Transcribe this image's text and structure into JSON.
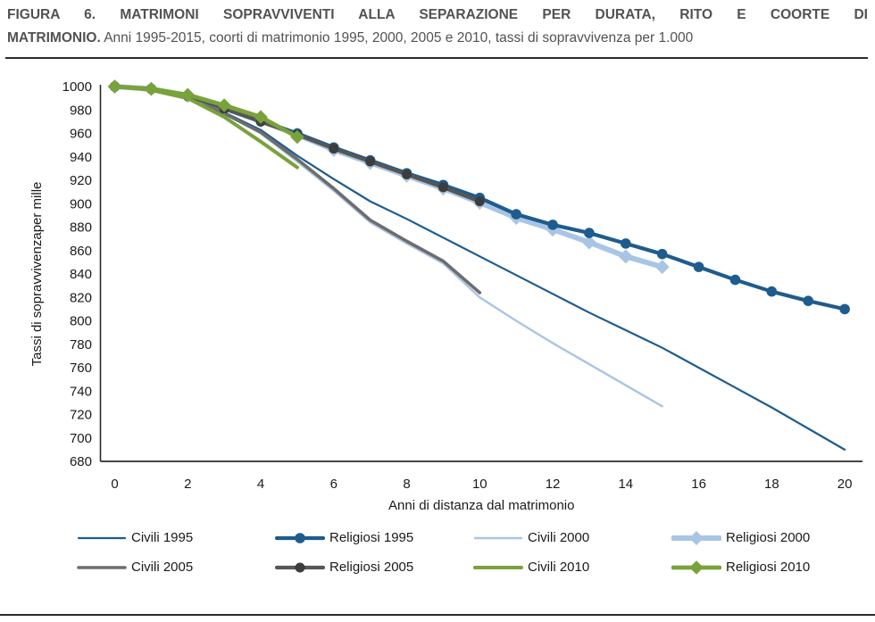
{
  "figure": {
    "title_line1_bold": "FIGURA 6. MATRIMONI SOPRAVVIVENTI ALLA SEPARAZIONE PER DURATA, RITO E COORTE DI",
    "title_line2_bold": "MATRIMONIO.",
    "title_line2_rest": "Anni 1995-2015, coorti di matrimonio 1995, 2000, 2005 e 2010, tassi di sopravvivenza per 1.000"
  },
  "chart_data": {
    "type": "line",
    "title": "Matrimoni sopravviventi alla separazione per durata, rito e coorte di matrimonio",
    "xlabel": "Anni di distanza dal matrimonio",
    "ylabel": "Tassi di sopravvivenzaper mille",
    "x_axis": {
      "min": 0,
      "max": 20,
      "tick_step": 2
    },
    "y_axis": {
      "min": 680,
      "max": 1000,
      "tick_step": 20
    },
    "grid": false,
    "legend_position": "bottom",
    "x_unit_years": [
      0,
      1,
      2,
      3,
      4,
      5,
      6,
      7,
      8,
      9,
      10,
      11,
      12,
      13,
      14,
      15,
      16,
      17,
      18,
      19,
      20
    ],
    "series": [
      {
        "id": "civili-1995",
        "name": "Civili 1995",
        "color": "#1E5C8E",
        "line_width": 2.2,
        "marker": "none",
        "marker_size": 0,
        "values": [
          1000,
          997,
          990,
          978,
          963,
          941,
          921,
          902,
          887,
          871,
          855,
          839,
          823,
          807,
          792,
          777,
          760,
          743,
          726,
          708,
          690
        ]
      },
      {
        "id": "religiosi-1995",
        "name": "Religiosi 1995",
        "color": "#1E5C8E",
        "line_width": 4.2,
        "marker": "circle",
        "marker_size": 11.6,
        "values": [
          1000,
          998,
          992,
          982,
          971,
          960,
          948,
          937,
          926,
          916,
          905,
          891,
          882,
          875,
          866,
          857,
          846,
          835,
          825,
          817,
          810
        ]
      },
      {
        "id": "civili-2000",
        "name": "Civili 2000",
        "color": "#A9C5E5",
        "line_width": 2.4,
        "marker": "none",
        "marker_size": 0,
        "values": [
          1000,
          997,
          990,
          977,
          960,
          936,
          911,
          884,
          866,
          849,
          820,
          800,
          781,
          763,
          745,
          727
        ]
      },
      {
        "id": "religiosi-2000",
        "name": "Religiosi 2000",
        "color": "#A9C5E5",
        "line_width": 6,
        "marker": "diamond",
        "marker_size": 14,
        "values": [
          1000,
          998,
          992,
          982,
          971,
          959,
          946,
          935,
          924,
          913,
          901,
          888,
          878,
          867,
          855,
          846
        ]
      },
      {
        "id": "civili-2005",
        "name": "Civili 2005",
        "color": "#6D6D6D",
        "line_width": 3.6,
        "marker": "none",
        "marker_size": 0,
        "values": [
          1000,
          997,
          990,
          977,
          961,
          938,
          913,
          886,
          868,
          851,
          824
        ]
      },
      {
        "id": "religiosi-2005",
        "name": "Religiosi 2005",
        "color": "#565656",
        "marker_color": "#3D3D3D",
        "line_width": 4.2,
        "marker": "circle",
        "marker_size": 11,
        "values": [
          1000,
          998,
          992,
          981,
          970,
          959,
          947,
          936,
          925,
          914,
          902
        ]
      },
      {
        "id": "civili-2010",
        "name": "Civili 2010",
        "color": "#7AA23B",
        "line_width": 4,
        "marker": "none",
        "marker_size": 0,
        "values": [
          1000,
          997,
          990,
          974,
          953,
          931
        ]
      },
      {
        "id": "religiosi-2010",
        "name": "Religiosi 2010",
        "color": "#7AA23B",
        "line_width": 4.8,
        "marker": "diamond",
        "marker_size": 13.5,
        "values": [
          1000,
          998,
          993,
          984,
          974,
          957
        ]
      }
    ],
    "draw_order": [
      "civili-2000",
      "civili-1995",
      "civili-2005",
      "religiosi-2000",
      "religiosi-1995",
      "religiosi-2005",
      "civili-2010",
      "religiosi-2010"
    ],
    "legend_rows": [
      [
        "civili-1995",
        "religiosi-1995",
        "civili-2000",
        "religiosi-2000"
      ],
      [
        "civili-2005",
        "religiosi-2005",
        "civili-2010",
        "religiosi-2010"
      ]
    ]
  }
}
